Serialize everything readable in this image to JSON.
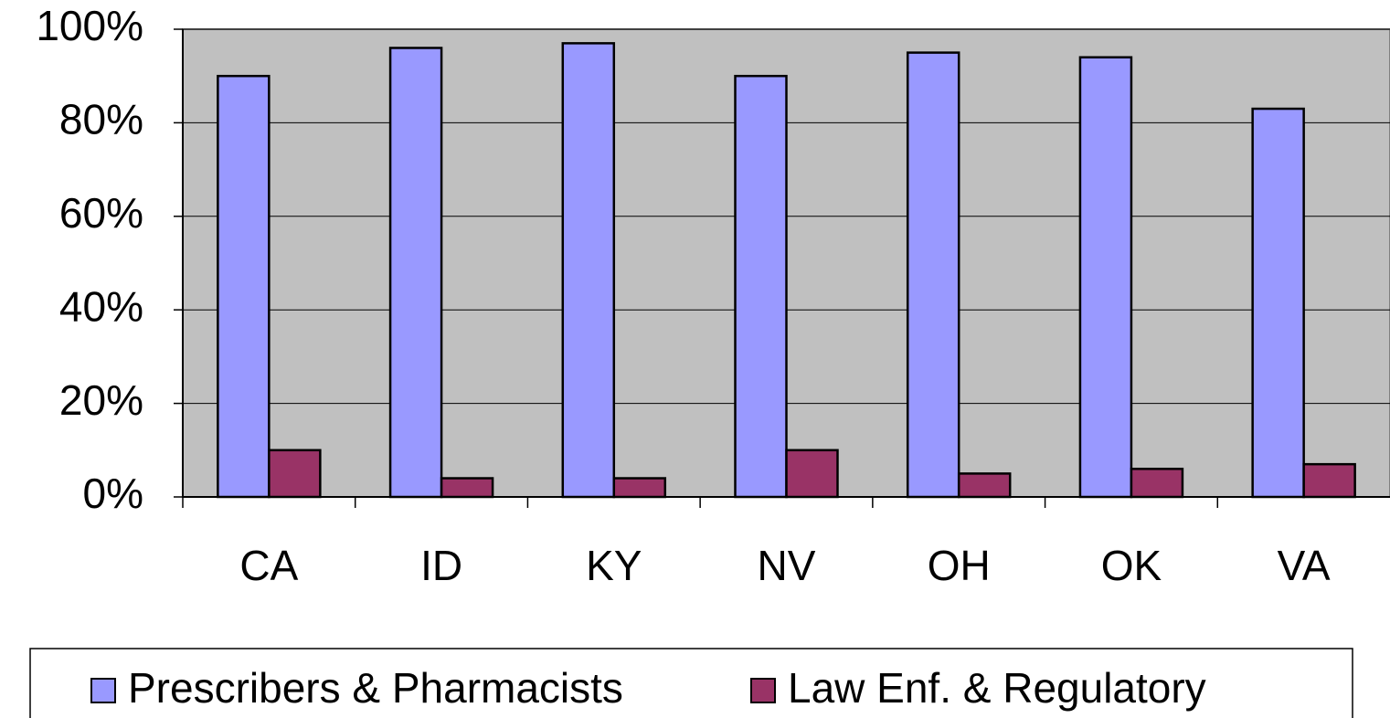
{
  "chart_data": {
    "type": "bar",
    "categories": [
      "CA",
      "ID",
      "KY",
      "NV",
      "OH",
      "OK",
      "VA"
    ],
    "series": [
      {
        "name": "Prescribers & Pharmacists",
        "color": "#9999ff",
        "values": [
          90,
          96,
          97,
          90,
          95,
          94,
          83
        ]
      },
      {
        "name": "Law Enf. & Regulatory",
        "color": "#993366",
        "values": [
          10,
          4,
          4,
          10,
          5,
          6,
          7
        ]
      }
    ],
    "ylim": [
      0,
      100
    ],
    "yticks": [
      {
        "value": 0,
        "label": "0%"
      },
      {
        "value": 20,
        "label": "20%"
      },
      {
        "value": 40,
        "label": "40%"
      },
      {
        "value": 60,
        "label": "60%"
      },
      {
        "value": 80,
        "label": "80%"
      },
      {
        "value": 100,
        "label": "100%"
      }
    ],
    "grid": true,
    "legend": "bottom"
  }
}
